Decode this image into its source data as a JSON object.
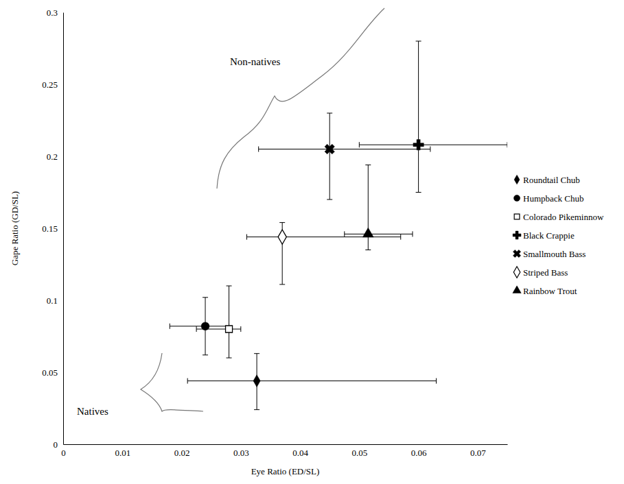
{
  "chart_data": {
    "type": "scatter",
    "x_label": "Eye Ratio (ED/SL)",
    "y_label": "Gape Ratio (GD/SL)",
    "xlim": [
      0,
      0.075
    ],
    "xticks": [
      0,
      0.01,
      0.02,
      0.03,
      0.04,
      0.05,
      0.06,
      0.07
    ],
    "ylim": [
      0,
      0.3
    ],
    "yticks": [
      0,
      0.05,
      0.1,
      0.15,
      0.2,
      0.25,
      0.3
    ],
    "grid": false,
    "legend": "right",
    "annotations": [
      "Non-natives",
      "Natives"
    ],
    "series": [
      {
        "name": "Roundtail Chub",
        "marker": "diamond",
        "color": "#000000",
        "x": [
          0.0327
        ],
        "values": [
          0.044
        ],
        "x_range": [
          0.021,
          0.063
        ],
        "y_range": [
          0.024,
          0.063
        ]
      },
      {
        "name": "Humpback Chub",
        "marker": "circle",
        "color": "#000000",
        "x": [
          0.024
        ],
        "values": [
          0.082
        ],
        "x_range": [
          0.018,
          0.028
        ],
        "y_range": [
          0.062,
          0.102
        ]
      },
      {
        "name": "Colorado Pikeminnow",
        "marker": "square-open",
        "color": "#000000",
        "x": [
          0.028
        ],
        "values": [
          0.08
        ],
        "x_range": [
          0.0225,
          0.03
        ],
        "y_range": [
          0.06,
          0.11
        ]
      },
      {
        "name": "Black Crappie",
        "marker": "cross",
        "color": "#000000",
        "x": [
          0.06
        ],
        "values": [
          0.208
        ],
        "x_range": [
          0.05,
          0.075
        ],
        "y_range": [
          0.175,
          0.28
        ]
      },
      {
        "name": "Smallmouth Bass",
        "marker": "x",
        "color": "#000000",
        "x": [
          0.045
        ],
        "values": [
          0.205
        ],
        "x_range": [
          0.033,
          0.062
        ],
        "y_range": [
          0.17,
          0.23
        ]
      },
      {
        "name": "Striped Bass",
        "marker": "diamond-open",
        "color": "#000000",
        "x": [
          0.037
        ],
        "values": [
          0.144
        ],
        "x_range": [
          0.031,
          0.057
        ],
        "y_range": [
          0.111,
          0.154
        ]
      },
      {
        "name": "Rainbow Trout",
        "marker": "triangle",
        "color": "#000000",
        "x": [
          0.0515
        ],
        "values": [
          0.146
        ],
        "x_range": [
          0.0475,
          0.059
        ],
        "y_range": [
          0.135,
          0.194
        ]
      }
    ]
  }
}
